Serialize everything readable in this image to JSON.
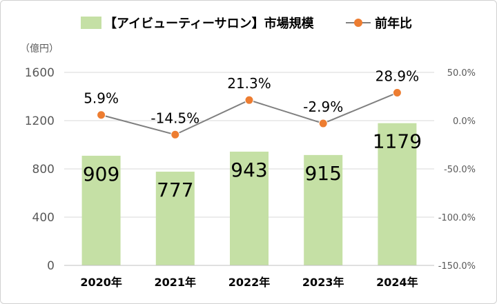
{
  "chart_data": {
    "type": "bar",
    "categories": [
      "2020年",
      "2021年",
      "2022年",
      "2023年",
      "2024年"
    ],
    "series": [
      {
        "name": "【アイビューティーサロン】市場規模",
        "type": "bar",
        "axis": "left",
        "values": [
          909,
          777,
          943,
          915,
          1179
        ],
        "labels": [
          "909",
          "777",
          "943",
          "915",
          "1179"
        ],
        "color": "#c5e0a5"
      },
      {
        "name": "前年比",
        "type": "line",
        "axis": "right",
        "values": [
          5.9,
          -14.5,
          21.3,
          -2.9,
          28.9
        ],
        "labels": [
          "5.9%",
          "-14.5%",
          "21.3%",
          "-2.9%",
          "28.9%"
        ],
        "color": "#ed7d31",
        "line_color": "#7f7f7f"
      }
    ],
    "y_left": {
      "unit": "（億円）",
      "ylim": [
        0,
        1600
      ],
      "ticks": [
        0,
        400,
        800,
        1200,
        1600
      ],
      "tick_labels": [
        "0",
        "400",
        "800",
        "1200",
        "1600"
      ]
    },
    "y_right": {
      "ylim": [
        -150,
        50
      ],
      "ticks": [
        50,
        0,
        -50,
        -100,
        -150
      ],
      "tick_labels": [
        "50.0%",
        "0.0%",
        "-50.0%",
        "-100.0%",
        "-150.0%"
      ]
    },
    "grid": true,
    "legend": "top"
  }
}
